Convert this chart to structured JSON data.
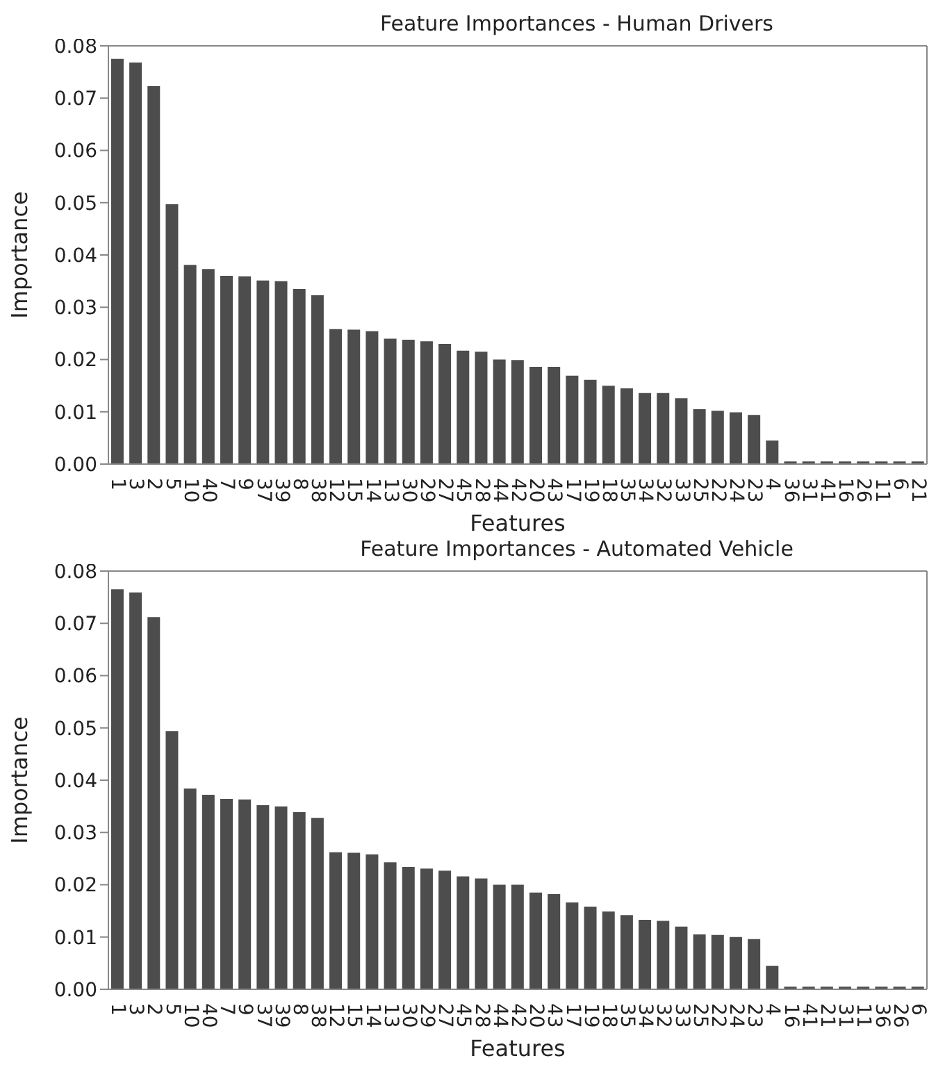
{
  "chart_data": [
    {
      "type": "bar",
      "title": "Feature Importances  - Human Drivers",
      "xlabel": "Features",
      "ylabel": "Importance",
      "categories": [
        "1",
        "3",
        "2",
        "5",
        "10",
        "40",
        "7",
        "9",
        "37",
        "39",
        "8",
        "38",
        "12",
        "15",
        "14",
        "13",
        "30",
        "29",
        "27",
        "45",
        "28",
        "44",
        "42",
        "20",
        "43",
        "17",
        "19",
        "18",
        "35",
        "34",
        "32",
        "33",
        "25",
        "22",
        "24",
        "23",
        "4",
        "36",
        "31",
        "41",
        "16",
        "26",
        "11",
        "6",
        "21"
      ],
      "values": [
        0.0775,
        0.0768,
        0.0723,
        0.0497,
        0.0381,
        0.0373,
        0.036,
        0.0359,
        0.0351,
        0.035,
        0.0335,
        0.0323,
        0.0258,
        0.0257,
        0.0254,
        0.024,
        0.0238,
        0.0235,
        0.023,
        0.0217,
        0.0215,
        0.02,
        0.0199,
        0.0186,
        0.0186,
        0.0169,
        0.0161,
        0.015,
        0.0145,
        0.0136,
        0.0136,
        0.0126,
        0.0105,
        0.0102,
        0.0099,
        0.0094,
        0.0045,
        0.0005,
        0.0005,
        0.0005,
        0.0005,
        0.0005,
        0.0005,
        0.0005,
        0.0005
      ],
      "color": "#4d4d4d",
      "ylim": [
        0,
        0.08
      ],
      "yticks": [
        {
          "value": 0,
          "label": "0.00"
        },
        {
          "value": 0.01,
          "label": "0.01"
        },
        {
          "value": 0.02,
          "label": "0.02"
        },
        {
          "value": 0.03,
          "label": "0.03"
        },
        {
          "value": 0.04,
          "label": "0.04"
        },
        {
          "value": 0.05,
          "label": "0.05"
        },
        {
          "value": 0.06,
          "label": "0.06"
        },
        {
          "value": 0.07,
          "label": "0.07"
        },
        {
          "value": 0.08,
          "label": "0.08"
        }
      ],
      "grid": false,
      "legend": false
    },
    {
      "type": "bar",
      "title": "Feature Importances  - Automated Vehicle",
      "xlabel": "Features",
      "ylabel": "Importance",
      "categories": [
        "1",
        "3",
        "2",
        "5",
        "10",
        "40",
        "7",
        "9",
        "37",
        "39",
        "8",
        "38",
        "12",
        "15",
        "14",
        "13",
        "30",
        "29",
        "27",
        "45",
        "28",
        "44",
        "42",
        "20",
        "43",
        "17",
        "19",
        "18",
        "35",
        "34",
        "32",
        "33",
        "25",
        "22",
        "24",
        "23",
        "4",
        "16",
        "41",
        "21",
        "31",
        "11",
        "36",
        "26",
        "6"
      ],
      "values": [
        0.0765,
        0.0759,
        0.0712,
        0.0494,
        0.0384,
        0.0372,
        0.0364,
        0.0363,
        0.0352,
        0.035,
        0.0339,
        0.0328,
        0.0262,
        0.0261,
        0.0258,
        0.0243,
        0.0234,
        0.0231,
        0.0227,
        0.0216,
        0.0212,
        0.02,
        0.02,
        0.0185,
        0.0182,
        0.0166,
        0.0158,
        0.0149,
        0.0142,
        0.0133,
        0.0131,
        0.012,
        0.0105,
        0.0104,
        0.01,
        0.0096,
        0.0045,
        0.0005,
        0.0005,
        0.0005,
        0.0005,
        0.0005,
        0.0005,
        0.0005,
        0.0005
      ],
      "color": "#4d4d4d",
      "ylim": [
        0,
        0.08
      ],
      "yticks": [
        {
          "value": 0,
          "label": "0.00"
        },
        {
          "value": 0.01,
          "label": "0.01"
        },
        {
          "value": 0.02,
          "label": "0.02"
        },
        {
          "value": 0.03,
          "label": "0.03"
        },
        {
          "value": 0.04,
          "label": "0.04"
        },
        {
          "value": 0.05,
          "label": "0.05"
        },
        {
          "value": 0.06,
          "label": "0.06"
        },
        {
          "value": 0.07,
          "label": "0.07"
        },
        {
          "value": 0.08,
          "label": "0.08"
        }
      ],
      "grid": false,
      "legend": false
    }
  ]
}
